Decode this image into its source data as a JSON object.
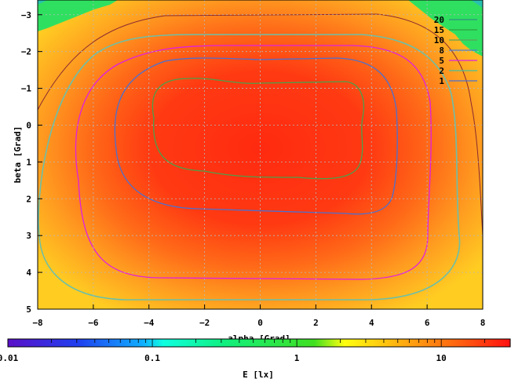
{
  "chart_data": {
    "type": "heatmap",
    "xlabel": "alpha [Grad]",
    "ylabel": "beta [Grad]",
    "xlim": [
      -8,
      8
    ],
    "ylim": [
      -3.4,
      5
    ],
    "y_axis_inverted": true,
    "x_ticks": [
      -8,
      -6,
      -4,
      -2,
      0,
      2,
      4,
      6,
      8
    ],
    "y_ticks": [
      -3,
      -2,
      -1,
      0,
      1,
      2,
      3,
      4,
      5
    ],
    "grid": true,
    "legend_position": "top-right",
    "contour_levels": [
      {
        "label": "20",
        "color": "#2d8f7f"
      },
      {
        "label": "15",
        "color": "#2f9f3f"
      },
      {
        "label": "10",
        "color": "#5aa05a"
      },
      {
        "label": "8",
        "color": "#4a7fd0"
      },
      {
        "label": "5",
        "color": "#e020e0"
      },
      {
        "label": "2",
        "color": "#40c0a0"
      },
      {
        "label": "1",
        "color": "#4a70d0"
      }
    ],
    "colorbar": {
      "scale": "log",
      "range": [
        0.01,
        30
      ],
      "ticks": [
        "0.01",
        "0.1",
        "1",
        "10"
      ],
      "tick_values": [
        0.01,
        0.1,
        1,
        10
      ],
      "label": "E [lx]"
    }
  }
}
